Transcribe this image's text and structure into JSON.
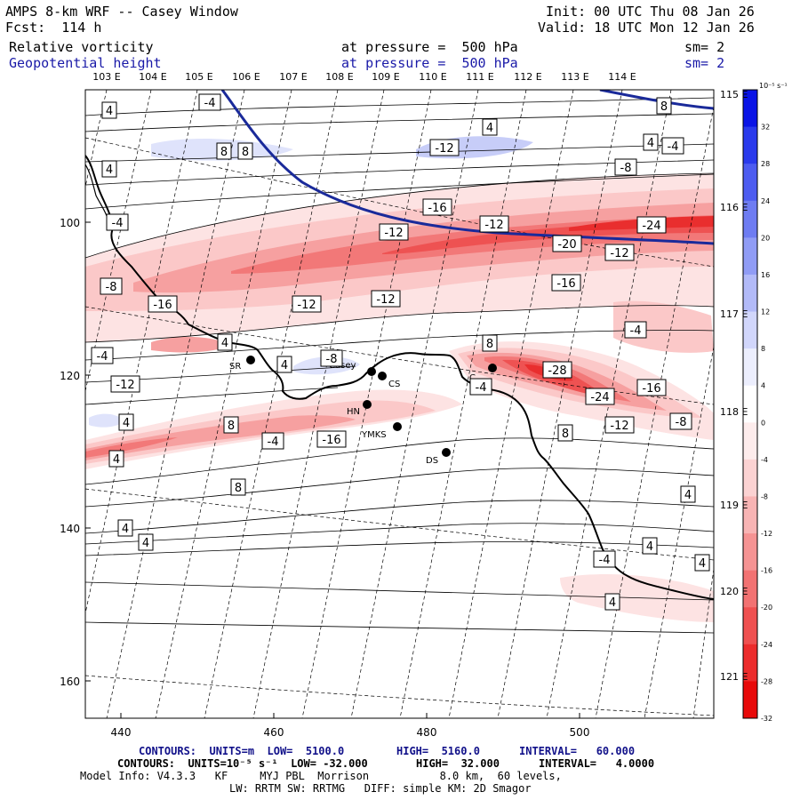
{
  "header": {
    "model_title": "AMPS 8-km WRF -- Casey Window",
    "init": "Init: 00 UTC Thu 08 Jan 26",
    "forecast": "Fcst:  114 h",
    "valid": "Valid: 18 UTC Mon 12 Jan 26",
    "field1": {
      "name": "Relative vorticity",
      "level": "at pressure =  500 hPa",
      "smooth": "sm= 2"
    },
    "field2": {
      "name": "Geopotential height",
      "level": "at pressure =  500 hPa",
      "smooth": "sm= 2"
    }
  },
  "axes": {
    "x_ticks": [
      "440",
      "460",
      "480",
      "500"
    ],
    "y_ticks": [
      "100",
      "120",
      "140",
      "160"
    ],
    "lon_top": [
      "103 E",
      "104 E",
      "105 E",
      "106 E",
      "107 E",
      "108 E",
      "109 E",
      "110 E",
      "111 E",
      "112 E",
      "113 E",
      "114 E"
    ],
    "lon_right": [
      "115 E",
      "116 E",
      "117 E",
      "118 E",
      "119 E",
      "120 E",
      "121 E"
    ]
  },
  "colorbar": {
    "unit": "10⁻⁵ s⁻¹",
    "labels": [
      "32",
      "28",
      "24",
      "20",
      "16",
      "12",
      "8",
      "4",
      "0",
      "-4",
      "-8",
      "-12",
      "-16",
      "-20",
      "-24",
      "-28",
      "-32"
    ],
    "colors": [
      "#0a14e6",
      "#2a3aec",
      "#4d5cf0",
      "#6e7cf2",
      "#909cf5",
      "#b2baf8",
      "#d1d6fb",
      "#eceefd",
      "#ffffff",
      "#fdecec",
      "#fbd2d2",
      "#f8b4b4",
      "#f59393",
      "#f27272",
      "#ef5050",
      "#ec2c2c",
      "#e80a0a"
    ]
  },
  "contour_labels": [
    {
      "id": "l1",
      "text": "-4"
    },
    {
      "id": "l2",
      "text": "4"
    },
    {
      "id": "l3",
      "text": "4"
    },
    {
      "id": "l4",
      "text": "8"
    },
    {
      "id": "l5",
      "text": "8"
    },
    {
      "id": "l6",
      "text": "-12"
    },
    {
      "id": "l7",
      "text": "8"
    },
    {
      "id": "l8",
      "text": "4"
    },
    {
      "id": "l9",
      "text": "-4"
    },
    {
      "id": "l10",
      "text": "4"
    },
    {
      "id": "l11",
      "text": "-8"
    },
    {
      "id": "l12",
      "text": "-4"
    },
    {
      "id": "l13",
      "text": "-16"
    },
    {
      "id": "l14",
      "text": "-12"
    },
    {
      "id": "l15",
      "text": "-24"
    },
    {
      "id": "l16",
      "text": "-20"
    },
    {
      "id": "l17",
      "text": "-12"
    },
    {
      "id": "l18",
      "text": "-12"
    },
    {
      "id": "l19",
      "text": "-8"
    },
    {
      "id": "l20",
      "text": "-16"
    },
    {
      "id": "l21",
      "text": "-16"
    },
    {
      "id": "l22",
      "text": "-12"
    },
    {
      "id": "l23",
      "text": "-12"
    },
    {
      "id": "l24",
      "text": "-4"
    },
    {
      "id": "l25",
      "text": "4"
    },
    {
      "id": "l26",
      "text": "8"
    },
    {
      "id": "l27",
      "text": "-4"
    },
    {
      "id": "l28",
      "text": "4"
    },
    {
      "id": "l29",
      "text": "-8"
    },
    {
      "id": "l30",
      "text": "-28"
    },
    {
      "id": "l31",
      "text": "-24"
    },
    {
      "id": "l32",
      "text": "-16"
    },
    {
      "id": "l33",
      "text": "-12"
    },
    {
      "id": "l34",
      "text": "-4"
    },
    {
      "id": "l35",
      "text": "4"
    },
    {
      "id": "l36",
      "text": "8"
    },
    {
      "id": "l37",
      "text": "-12"
    },
    {
      "id": "l38",
      "text": "-8"
    },
    {
      "id": "l39",
      "text": "-4"
    },
    {
      "id": "l40",
      "text": "-16"
    },
    {
      "id": "l41",
      "text": "4"
    },
    {
      "id": "l42",
      "text": "8"
    },
    {
      "id": "l43",
      "text": "8"
    },
    {
      "id": "l44",
      "text": "4"
    },
    {
      "id": "l45",
      "text": "4"
    },
    {
      "id": "l46",
      "text": "4"
    },
    {
      "id": "l47",
      "text": "4"
    },
    {
      "id": "l48",
      "text": "-4"
    },
    {
      "id": "l49",
      "text": "4"
    },
    {
      "id": "l50",
      "text": "4"
    }
  ],
  "stations": [
    {
      "id": "sr",
      "name": "SR"
    },
    {
      "id": "casey",
      "name": "Casey"
    },
    {
      "id": "cs",
      "name": "CS"
    },
    {
      "id": "hn",
      "name": "HN"
    },
    {
      "id": "ymks",
      "name": "YMKS"
    },
    {
      "id": "ds",
      "name": "DS"
    },
    {
      "id": "c2",
      "name": "C"
    }
  ],
  "footer": {
    "line1_a": "CONTOURS:  UNITS=m  LOW=  5100.0",
    "line1_b": "HIGH=  5160.0",
    "line1_c": "INTERVAL=   60.000",
    "line2_a": "CONTOURS:  UNITS=10⁻⁵ s⁻¹  LOW= -32.000",
    "line2_b": "HIGH=  32.000",
    "line2_c": "INTERVAL=   4.0000",
    "line3": "Model Info: V4.3.3   KF     MYJ PBL  Morrison           8.0 km,  60 levels,",
    "line4": "LW: RRTM SW: RRTMG   DIFF: simple KM: 2D Smagor"
  }
}
